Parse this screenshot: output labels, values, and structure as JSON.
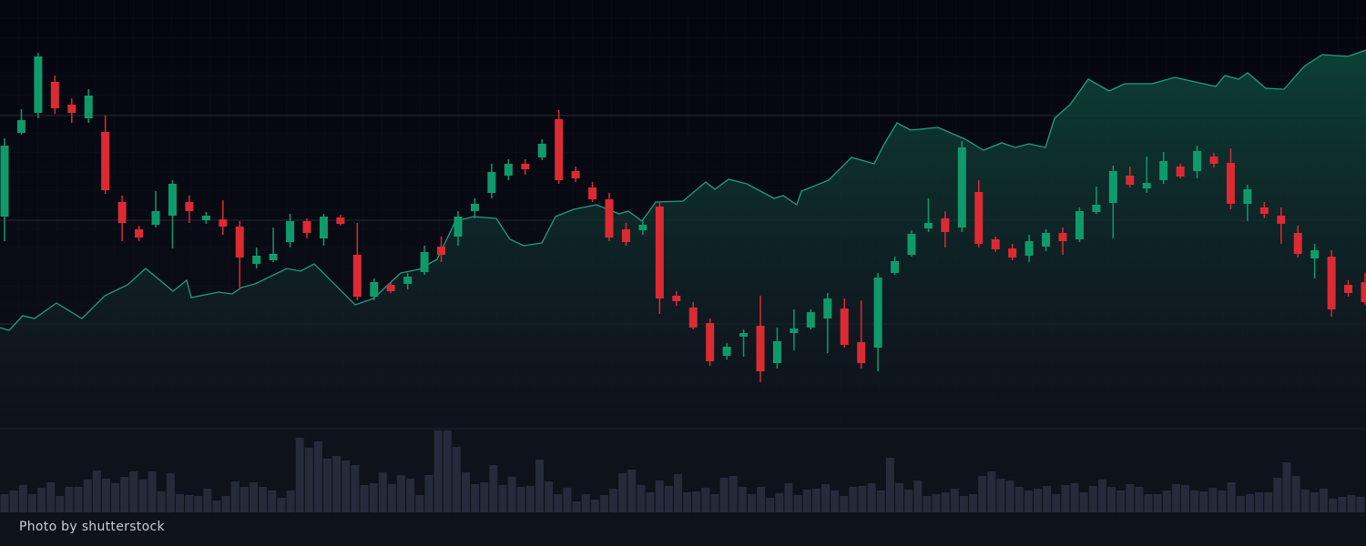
{
  "credit": "Photo by shutterstock",
  "chart_data": {
    "type": "candlestick",
    "ylim": [
      0,
      600
    ],
    "yticks": [
      129,
      244,
      358,
      473
    ],
    "grid": true,
    "up_color": "#0f9a6c",
    "down_color": "#dc2a33",
    "open": [
      362,
      454,
      476,
      510,
      485,
      470,
      455,
      378,
      348,
      353,
      363,
      378,
      358,
      359,
      351,
      310,
      314,
      334,
      357,
      338,
      361,
      320,
      274,
      287,
      288,
      301,
      329,
      340,
      368,
      388,
      407,
      420,
      427,
      469,
      412,
      394,
      381,
      348,
      347,
      373,
      275,
      262,
      245,
      209,
      230,
      242,
      201,
      234,
      240,
      250,
      261,
      224,
      218,
      300,
      320,
      349,
      360,
      350,
      389,
      337,
      327,
      319,
      329,
      344,
      337,
      367,
      377,
      407,
      393,
      402,
      417,
      412,
      428,
      421,
      376,
      372,
      363,
      344,
      316,
      318,
      287,
      290
    ],
    "high": [
      448,
      480,
      542,
      517,
      492,
      502,
      473,
      385,
      352,
      390,
      402,
      385,
      367,
      380,
      357,
      328,
      350,
      365,
      360,
      365,
      364,
      355,
      294,
      290,
      300,
      330,
      340,
      368,
      382,
      420,
      425,
      425,
      447,
      479,
      417,
      400,
      388,
      355,
      357,
      378,
      280,
      268,
      250,
      223,
      238,
      275,
      240,
      260,
      260,
      278,
      272,
      270,
      300,
      318,
      347,
      382,
      368,
      445,
      402,
      340,
      332,
      342,
      348,
      350,
      372,
      395,
      418,
      417,
      428,
      433,
      420,
      440,
      432,
      437,
      397,
      378,
      372,
      352,
      332,
      325,
      292,
      300
    ],
    "low": [
      335,
      452,
      470,
      475,
      465,
      465,
      387,
      335,
      335,
      350,
      327,
      355,
      354,
      342,
      282,
      305,
      312,
      328,
      338,
      330,
      352,
      270,
      270,
      278,
      282,
      298,
      312,
      330,
      360,
      382,
      402,
      408,
      424,
      398,
      400,
      378,
      335,
      330,
      342,
      255,
      264,
      238,
      198,
      205,
      208,
      180,
      195,
      215,
      238,
      212,
      218,
      195,
      192,
      298,
      318,
      345,
      328,
      345,
      328,
      323,
      314,
      312,
      324,
      320,
      334,
      365,
      338,
      394,
      388,
      398,
      404,
      404,
      416,
      370,
      357,
      360,
      332,
      317,
      294,
      252,
      274,
      265
    ],
    "close": [
      440,
      468,
      538,
      481,
      476,
      495,
      391,
      355,
      339,
      368,
      398,
      368,
      363,
      351,
      317,
      319,
      321,
      357,
      344,
      362,
      354,
      274,
      290,
      280,
      296,
      323,
      320,
      362,
      376,
      411,
      420,
      414,
      442,
      402,
      404,
      381,
      339,
      334,
      353,
      272,
      269,
      240,
      203,
      219,
      234,
      192,
      225,
      239,
      257,
      272,
      221,
      201,
      295,
      313,
      343,
      355,
      345,
      438,
      332,
      326,
      317,
      335,
      344,
      335,
      368,
      375,
      412,
      397,
      399,
      423,
      406,
      434,
      420,
      376,
      392,
      365,
      354,
      321,
      325,
      260,
      278,
      268
    ],
    "area": {
      "color": "#1f9e80",
      "x": [
        0,
        10,
        25,
        38,
        62,
        90,
        115,
        140,
        160,
        190,
        205,
        210,
        240,
        255,
        265,
        280,
        315,
        330,
        345,
        390,
        410,
        440,
        460,
        480,
        500,
        520,
        545,
        560,
        575,
        595,
        610,
        630,
        655,
        680,
        690,
        705,
        720,
        750,
        775,
        785,
        800,
        820,
        850,
        860,
        875,
        880,
        910,
        935,
        960,
        970,
        985,
        1000,
        1030,
        1060,
        1080,
        1100,
        1115,
        1130,
        1148,
        1158,
        1175,
        1195,
        1218,
        1235,
        1265,
        1290,
        1335,
        1345,
        1360,
        1370,
        1390,
        1410,
        1432,
        1452,
        1480,
        1500
      ],
      "values": [
        240,
        237,
        253,
        250,
        267,
        250,
        275,
        287,
        305,
        280,
        292,
        273,
        279,
        277,
        284,
        288,
        305,
        302,
        310,
        265,
        272,
        300,
        304,
        315,
        357,
        362,
        360,
        337,
        330,
        333,
        362,
        370,
        375,
        365,
        368,
        357,
        378,
        379,
        400,
        392,
        403,
        398,
        382,
        385,
        375,
        390,
        402,
        427,
        420,
        440,
        465,
        457,
        460,
        447,
        435,
        443,
        438,
        442,
        438,
        470,
        485,
        513,
        500,
        508,
        508,
        515,
        505,
        517,
        513,
        520,
        503,
        502,
        527,
        540,
        538,
        545
      ]
    },
    "volume": {
      "color": "#252b3a",
      "values": [
        20,
        24,
        30,
        20,
        27,
        33,
        18,
        28,
        28,
        36,
        46,
        37,
        32,
        39,
        45,
        36,
        45,
        23,
        43,
        20,
        19,
        18,
        26,
        13,
        18,
        34,
        28,
        33,
        28,
        24,
        16,
        24,
        82,
        71,
        78,
        59,
        62,
        57,
        52,
        30,
        32,
        44,
        31,
        41,
        37,
        19,
        41,
        90,
        90,
        72,
        44,
        31,
        33,
        52,
        30,
        39,
        28,
        29,
        58,
        34,
        20,
        27,
        12,
        20,
        14,
        19,
        26,
        43,
        47,
        30,
        22,
        35,
        29,
        42,
        22,
        23,
        27,
        20,
        38,
        40,
        28,
        20,
        28,
        16,
        21,
        32,
        19,
        25,
        26,
        31,
        24,
        18,
        28,
        29,
        32,
        24,
        60,
        32,
        25,
        35,
        18,
        20,
        22,
        26,
        18,
        20,
        40,
        45,
        37,
        35,
        28,
        24,
        26,
        29,
        20,
        30,
        32,
        22,
        29,
        36,
        28,
        24,
        31,
        28,
        20,
        20,
        24,
        31,
        30,
        24,
        23,
        27,
        24,
        33,
        18,
        20,
        22,
        22,
        38,
        55,
        40,
        25,
        22,
        26,
        15,
        17,
        19,
        17
      ]
    }
  }
}
